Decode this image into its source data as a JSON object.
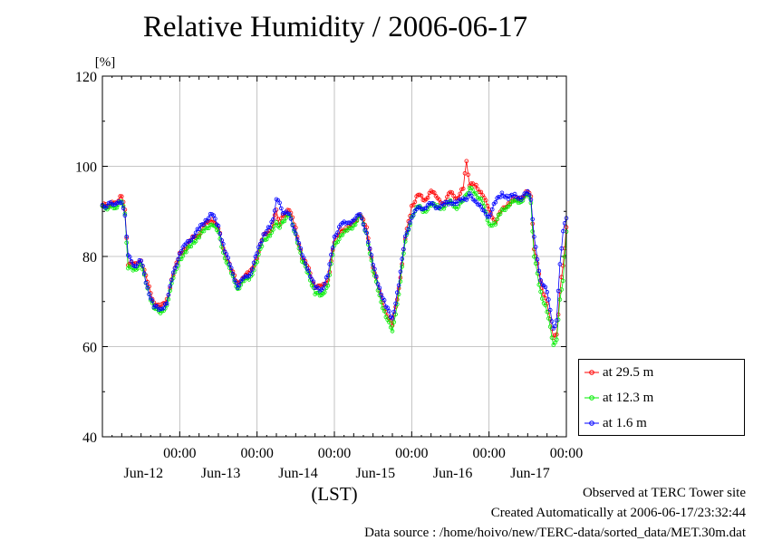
{
  "page": {
    "title": "Relative Humidity / 2006-06-17",
    "footer": {
      "site": "Observed at TERC Tower site",
      "created": "Created Automatically at 2006-06-17/23:32:44",
      "source": "Data source : /home/hoivo/new/TERC-data/sorted_data/MET.30m.dat"
    }
  },
  "chart_data": {
    "type": "line",
    "title": "Relative Humidity / 2006-06-17",
    "ylabel": "[%]",
    "xlabel": "(LST)",
    "ylim": [
      40,
      120
    ],
    "yticks": [
      40,
      60,
      80,
      100,
      120
    ],
    "xlim": [
      "2006-06-11 00:00",
      "2006-06-17 00:00"
    ],
    "time_tick_label": "00:00",
    "xtick_days": [
      "Jun-12",
      "Jun-13",
      "Jun-14",
      "Jun-15",
      "Jun-16",
      "Jun-17"
    ],
    "grid": true,
    "legend_position": "right-bottom",
    "series": [
      {
        "name": "at 29.5 m",
        "color": "#ff0000",
        "points": [
          [
            "2006-06-11 00:00",
            91.2
          ],
          [
            "2006-06-11 04:00",
            91.8
          ],
          [
            "2006-06-11 06:00",
            93.6
          ],
          [
            "2006-06-11 07:00",
            90.0
          ],
          [
            "2006-06-11 08:00",
            78.5
          ],
          [
            "2006-06-11 10:00",
            78.0
          ],
          [
            "2006-06-11 12:00",
            79.5
          ],
          [
            "2006-06-11 14:00",
            74.0
          ],
          [
            "2006-06-11 16:00",
            70.0
          ],
          [
            "2006-06-11 18:00",
            68.5
          ],
          [
            "2006-06-11 20:00",
            70.5
          ],
          [
            "2006-06-11 22:00",
            76.0
          ],
          [
            "2006-06-12 00:00",
            80.5
          ],
          [
            "2006-06-12 02:00",
            82.0
          ],
          [
            "2006-06-12 04:00",
            84.0
          ],
          [
            "2006-06-12 06:00",
            85.0
          ],
          [
            "2006-06-12 08:00",
            87.0
          ],
          [
            "2006-06-12 10:00",
            88.5
          ],
          [
            "2006-06-12 12:00",
            86.0
          ],
          [
            "2006-06-12 14:00",
            81.0
          ],
          [
            "2006-06-12 16:00",
            77.0
          ],
          [
            "2006-06-12 18:00",
            74.0
          ],
          [
            "2006-06-12 20:00",
            75.5
          ],
          [
            "2006-06-12 22:00",
            76.5
          ],
          [
            "2006-06-13 00:00",
            80.0
          ],
          [
            "2006-06-13 02:00",
            84.5
          ],
          [
            "2006-06-13 04:00",
            86.0
          ],
          [
            "2006-06-13 05:00",
            87.0
          ],
          [
            "2006-06-13 06:00",
            90.5
          ],
          [
            "2006-06-13 07:00",
            87.0
          ],
          [
            "2006-06-13 08:00",
            89.0
          ],
          [
            "2006-06-13 10:00",
            90.5
          ],
          [
            "2006-06-13 12:00",
            86.0
          ],
          [
            "2006-06-13 14:00",
            80.0
          ],
          [
            "2006-06-13 16:00",
            77.0
          ],
          [
            "2006-06-13 18:00",
            73.5
          ],
          [
            "2006-06-13 20:00",
            73.0
          ],
          [
            "2006-06-13 22:00",
            75.0
          ],
          [
            "2006-06-14 00:00",
            83.0
          ],
          [
            "2006-06-14 02:00",
            86.0
          ],
          [
            "2006-06-14 04:00",
            86.0
          ],
          [
            "2006-06-14 06:00",
            87.5
          ],
          [
            "2006-06-14 08:00",
            89.5
          ],
          [
            "2006-06-14 10:00",
            86.0
          ],
          [
            "2006-06-14 12:00",
            78.0
          ],
          [
            "2006-06-14 14:00",
            72.0
          ],
          [
            "2006-06-14 16:00",
            68.0
          ],
          [
            "2006-06-14 18:00",
            64.5
          ],
          [
            "2006-06-14 20:00",
            73.0
          ],
          [
            "2006-06-14 22:00",
            84.0
          ],
          [
            "2006-06-15 00:00",
            91.0
          ],
          [
            "2006-06-15 02:00",
            94.0
          ],
          [
            "2006-06-15 04:00",
            92.0
          ],
          [
            "2006-06-15 06:00",
            95.0
          ],
          [
            "2006-06-15 08:00",
            92.5
          ],
          [
            "2006-06-15 10:00",
            92.0
          ],
          [
            "2006-06-15 12:00",
            94.0
          ],
          [
            "2006-06-15 14:00",
            93.0
          ],
          [
            "2006-06-15 16:00",
            95.0
          ],
          [
            "2006-06-15 17:00",
            101.0
          ],
          [
            "2006-06-15 18:00",
            96.0
          ],
          [
            "2006-06-15 20:00",
            95.5
          ],
          [
            "2006-06-15 22:00",
            94.0
          ],
          [
            "2006-06-16 00:00",
            90.0
          ],
          [
            "2006-06-16 02:00",
            88.0
          ],
          [
            "2006-06-16 04:00",
            90.0
          ],
          [
            "2006-06-16 06:00",
            92.0
          ],
          [
            "2006-06-16 08:00",
            92.5
          ],
          [
            "2006-06-16 10:00",
            93.0
          ],
          [
            "2006-06-16 12:00",
            94.5
          ],
          [
            "2006-06-16 13:00",
            93.0
          ],
          [
            "2006-06-16 14:00",
            82.0
          ],
          [
            "2006-06-16 16:00",
            74.0
          ],
          [
            "2006-06-16 18:00",
            70.0
          ],
          [
            "2006-06-16 20:00",
            61.5
          ],
          [
            "2006-06-16 21:00",
            63.0
          ],
          [
            "2006-06-16 22:00",
            72.0
          ],
          [
            "2006-06-16 23:00",
            78.0
          ],
          [
            "2006-06-17 00:00",
            86.5
          ]
        ]
      },
      {
        "name": "at 12.3 m",
        "color": "#00ee00",
        "points": [
          [
            "2006-06-11 00:00",
            90.8
          ],
          [
            "2006-06-11 04:00",
            91.0
          ],
          [
            "2006-06-11 06:00",
            92.0
          ],
          [
            "2006-06-11 07:00",
            89.5
          ],
          [
            "2006-06-11 08:00",
            77.5
          ],
          [
            "2006-06-11 10:00",
            77.0
          ],
          [
            "2006-06-11 12:00",
            78.5
          ],
          [
            "2006-06-11 14:00",
            72.5
          ],
          [
            "2006-06-11 16:00",
            69.0
          ],
          [
            "2006-06-11 18:00",
            67.0
          ],
          [
            "2006-06-11 20:00",
            69.5
          ],
          [
            "2006-06-11 22:00",
            75.0
          ],
          [
            "2006-06-12 00:00",
            79.5
          ],
          [
            "2006-06-12 02:00",
            81.0
          ],
          [
            "2006-06-12 04:00",
            83.0
          ],
          [
            "2006-06-12 06:00",
            84.5
          ],
          [
            "2006-06-12 08:00",
            86.0
          ],
          [
            "2006-06-12 10:00",
            87.5
          ],
          [
            "2006-06-12 12:00",
            85.0
          ],
          [
            "2006-06-12 14:00",
            80.0
          ],
          [
            "2006-06-12 16:00",
            76.0
          ],
          [
            "2006-06-12 18:00",
            73.0
          ],
          [
            "2006-06-12 20:00",
            74.5
          ],
          [
            "2006-06-12 22:00",
            75.5
          ],
          [
            "2006-06-13 00:00",
            79.0
          ],
          [
            "2006-06-13 02:00",
            83.5
          ],
          [
            "2006-06-13 04:00",
            85.0
          ],
          [
            "2006-06-13 05:00",
            85.5
          ],
          [
            "2006-06-13 06:00",
            88.0
          ],
          [
            "2006-06-13 07:00",
            86.0
          ],
          [
            "2006-06-13 08:00",
            88.0
          ],
          [
            "2006-06-13 10:00",
            89.0
          ],
          [
            "2006-06-13 12:00",
            85.0
          ],
          [
            "2006-06-13 14:00",
            79.0
          ],
          [
            "2006-06-13 16:00",
            76.0
          ],
          [
            "2006-06-13 18:00",
            72.0
          ],
          [
            "2006-06-13 20:00",
            71.0
          ],
          [
            "2006-06-13 22:00",
            74.0
          ],
          [
            "2006-06-14 00:00",
            82.0
          ],
          [
            "2006-06-14 02:00",
            85.0
          ],
          [
            "2006-06-14 04:00",
            85.5
          ],
          [
            "2006-06-14 06:00",
            87.0
          ],
          [
            "2006-06-14 08:00",
            89.0
          ],
          [
            "2006-06-14 10:00",
            85.0
          ],
          [
            "2006-06-14 12:00",
            77.0
          ],
          [
            "2006-06-14 14:00",
            71.0
          ],
          [
            "2006-06-14 16:00",
            67.0
          ],
          [
            "2006-06-14 18:00",
            63.0
          ],
          [
            "2006-06-14 20:00",
            72.0
          ],
          [
            "2006-06-14 22:00",
            83.0
          ],
          [
            "2006-06-15 00:00",
            89.0
          ],
          [
            "2006-06-15 02:00",
            91.0
          ],
          [
            "2006-06-15 04:00",
            90.0
          ],
          [
            "2006-06-15 06:00",
            91.5
          ],
          [
            "2006-06-15 08:00",
            91.0
          ],
          [
            "2006-06-15 10:00",
            91.0
          ],
          [
            "2006-06-15 12:00",
            92.0
          ],
          [
            "2006-06-15 14:00",
            91.0
          ],
          [
            "2006-06-15 16:00",
            92.0
          ],
          [
            "2006-06-15 17:00",
            94.0
          ],
          [
            "2006-06-15 18:00",
            95.0
          ],
          [
            "2006-06-15 20:00",
            94.0
          ],
          [
            "2006-06-15 22:00",
            92.0
          ],
          [
            "2006-06-16 00:00",
            87.0
          ],
          [
            "2006-06-16 02:00",
            87.5
          ],
          [
            "2006-06-16 04:00",
            90.0
          ],
          [
            "2006-06-16 06:00",
            91.5
          ],
          [
            "2006-06-16 08:00",
            92.0
          ],
          [
            "2006-06-16 10:00",
            92.5
          ],
          [
            "2006-06-16 12:00",
            93.5
          ],
          [
            "2006-06-16 13:00",
            92.0
          ],
          [
            "2006-06-16 14:00",
            80.0
          ],
          [
            "2006-06-16 16:00",
            72.0
          ],
          [
            "2006-06-16 18:00",
            68.0
          ],
          [
            "2006-06-16 20:00",
            60.0
          ],
          [
            "2006-06-16 21:00",
            62.0
          ],
          [
            "2006-06-16 22:00",
            70.0
          ],
          [
            "2006-06-16 23:00",
            75.0
          ],
          [
            "2006-06-17 00:00",
            85.5
          ]
        ]
      },
      {
        "name": "at 1.6 m",
        "color": "#0000ff",
        "points": [
          [
            "2006-06-11 00:00",
            91.0
          ],
          [
            "2006-06-11 04:00",
            92.0
          ],
          [
            "2006-06-11 06:00",
            91.5
          ],
          [
            "2006-06-11 07:00",
            89.5
          ],
          [
            "2006-06-11 08:00",
            80.0
          ],
          [
            "2006-06-11 10:00",
            78.0
          ],
          [
            "2006-06-11 12:00",
            79.0
          ],
          [
            "2006-06-11 14:00",
            73.0
          ],
          [
            "2006-06-11 16:00",
            69.0
          ],
          [
            "2006-06-11 18:00",
            68.0
          ],
          [
            "2006-06-11 20:00",
            70.0
          ],
          [
            "2006-06-11 22:00",
            76.0
          ],
          [
            "2006-06-12 00:00",
            81.0
          ],
          [
            "2006-06-12 02:00",
            82.5
          ],
          [
            "2006-06-12 04:00",
            84.5
          ],
          [
            "2006-06-12 06:00",
            86.0
          ],
          [
            "2006-06-12 08:00",
            88.0
          ],
          [
            "2006-06-12 10:00",
            89.5
          ],
          [
            "2006-06-12 12:00",
            86.5
          ],
          [
            "2006-06-12 14:00",
            81.5
          ],
          [
            "2006-06-12 16:00",
            77.0
          ],
          [
            "2006-06-12 18:00",
            73.5
          ],
          [
            "2006-06-12 20:00",
            75.0
          ],
          [
            "2006-06-12 22:00",
            76.5
          ],
          [
            "2006-06-13 00:00",
            80.5
          ],
          [
            "2006-06-13 02:00",
            85.0
          ],
          [
            "2006-06-13 04:00",
            86.5
          ],
          [
            "2006-06-13 05:00",
            88.0
          ],
          [
            "2006-06-13 06:00",
            93.0
          ],
          [
            "2006-06-13 07:00",
            91.5
          ],
          [
            "2006-06-13 08:00",
            90.0
          ],
          [
            "2006-06-13 10:00",
            89.0
          ],
          [
            "2006-06-13 12:00",
            85.5
          ],
          [
            "2006-06-13 14:00",
            80.0
          ],
          [
            "2006-06-13 16:00",
            77.0
          ],
          [
            "2006-06-13 18:00",
            73.0
          ],
          [
            "2006-06-13 20:00",
            72.5
          ],
          [
            "2006-06-13 22:00",
            76.0
          ],
          [
            "2006-06-14 00:00",
            84.0
          ],
          [
            "2006-06-14 02:00",
            87.5
          ],
          [
            "2006-06-14 04:00",
            87.0
          ],
          [
            "2006-06-14 06:00",
            88.5
          ],
          [
            "2006-06-14 08:00",
            89.0
          ],
          [
            "2006-06-14 10:00",
            85.5
          ],
          [
            "2006-06-14 12:00",
            78.0
          ],
          [
            "2006-06-14 14:00",
            73.0
          ],
          [
            "2006-06-14 16:00",
            69.0
          ],
          [
            "2006-06-14 18:00",
            66.0
          ],
          [
            "2006-06-14 20:00",
            74.0
          ],
          [
            "2006-06-14 22:00",
            84.0
          ],
          [
            "2006-06-15 00:00",
            89.0
          ],
          [
            "2006-06-15 02:00",
            90.5
          ],
          [
            "2006-06-15 04:00",
            91.0
          ],
          [
            "2006-06-15 06:00",
            91.5
          ],
          [
            "2006-06-15 08:00",
            91.0
          ],
          [
            "2006-06-15 10:00",
            91.5
          ],
          [
            "2006-06-15 12:00",
            92.0
          ],
          [
            "2006-06-15 14:00",
            92.0
          ],
          [
            "2006-06-15 16:00",
            92.5
          ],
          [
            "2006-06-15 17:00",
            93.0
          ],
          [
            "2006-06-15 18:00",
            93.5
          ],
          [
            "2006-06-15 20:00",
            92.5
          ],
          [
            "2006-06-15 22:00",
            90.0
          ],
          [
            "2006-06-16 00:00",
            89.0
          ],
          [
            "2006-06-16 02:00",
            92.0
          ],
          [
            "2006-06-16 04:00",
            94.0
          ],
          [
            "2006-06-16 06:00",
            93.0
          ],
          [
            "2006-06-16 08:00",
            93.5
          ],
          [
            "2006-06-16 10:00",
            93.0
          ],
          [
            "2006-06-16 12:00",
            94.0
          ],
          [
            "2006-06-16 13:00",
            93.0
          ],
          [
            "2006-06-16 14:00",
            84.0
          ],
          [
            "2006-06-16 16:00",
            75.0
          ],
          [
            "2006-06-16 18:00",
            72.0
          ],
          [
            "2006-06-16 20:00",
            64.0
          ],
          [
            "2006-06-16 21:00",
            66.0
          ],
          [
            "2006-06-16 22:00",
            78.0
          ],
          [
            "2006-06-16 23:00",
            86.0
          ],
          [
            "2006-06-17 00:00",
            88.5
          ]
        ]
      }
    ]
  }
}
